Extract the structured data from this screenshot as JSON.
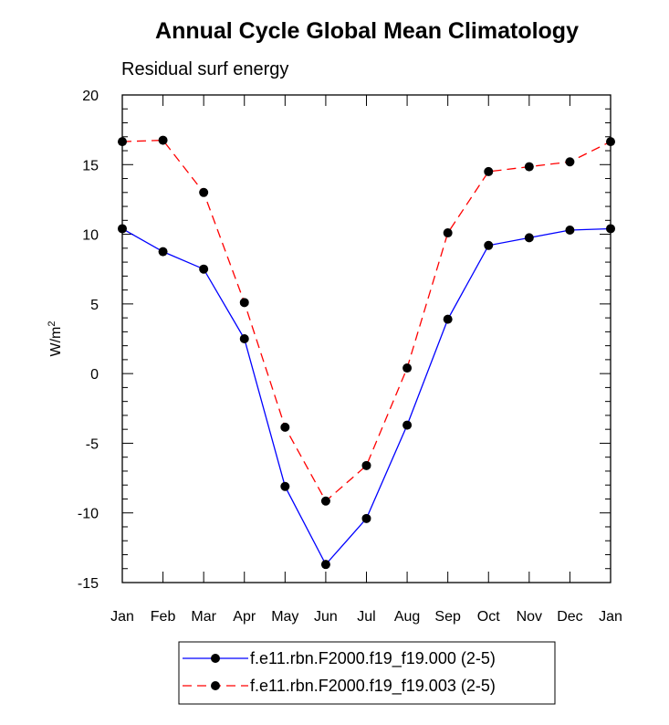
{
  "chart_data": {
    "type": "line",
    "title": "Annual Cycle Global Mean Climatology",
    "subtitle": "Residual surf energy",
    "ylabel": "W/m",
    "ylabel_superscript": "2",
    "xlabel": "",
    "categories": [
      "Jan",
      "Feb",
      "Mar",
      "Apr",
      "May",
      "Jun",
      "Jul",
      "Aug",
      "Sep",
      "Oct",
      "Nov",
      "Dec",
      "Jan"
    ],
    "ylim": [
      -15,
      20
    ],
    "yticks": [
      -15,
      -10,
      -5,
      0,
      5,
      10,
      15,
      20
    ],
    "ytick_labels": [
      "-15",
      "-10",
      "-5",
      "0",
      "5",
      "10",
      "15",
      "20"
    ],
    "grid": false,
    "legend_position": "bottom-center",
    "series": [
      {
        "name": "f.e11.rbn.F2000.f19_f19.000 (2-5)",
        "color": "#0000ff",
        "dash": "solid",
        "values": [
          10.4,
          8.75,
          7.5,
          2.5,
          -8.1,
          -13.7,
          -10.4,
          -3.7,
          3.9,
          9.2,
          9.75,
          10.3,
          10.4
        ]
      },
      {
        "name": "f.e11.rbn.F2000.f19_f19.003 (2-5)",
        "color": "#ff0000",
        "dash": "dashed",
        "values": [
          16.65,
          16.75,
          13.0,
          5.1,
          -3.85,
          -9.15,
          -6.6,
          0.4,
          10.1,
          14.5,
          14.85,
          15.2,
          16.65
        ]
      }
    ]
  }
}
